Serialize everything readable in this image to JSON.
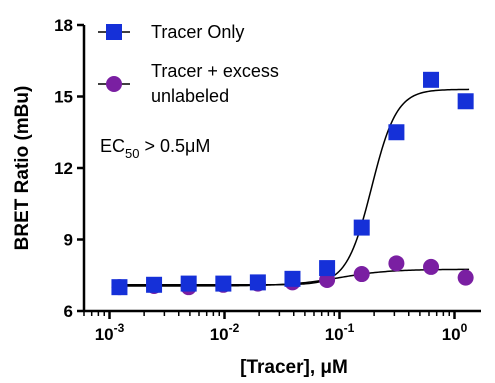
{
  "chart_data": {
    "type": "scatter",
    "xscale": "log",
    "xlabel": "[Tracer], μM",
    "ylabel": "BRET Ratio (mBu)",
    "xlim": [
      0.0006,
      1.7
    ],
    "ylim": [
      6,
      18
    ],
    "y_ticks": [
      "6",
      "9",
      "12",
      "15",
      "18"
    ],
    "x_ticks": [
      {
        "value": 0.001,
        "base": "10",
        "exp": "-3"
      },
      {
        "value": 0.01,
        "base": "10",
        "exp": "-2"
      },
      {
        "value": 0.1,
        "base": "10",
        "exp": "-1"
      },
      {
        "value": 1,
        "base": "10",
        "exp": "0"
      }
    ],
    "annotation": {
      "prefix": "EC",
      "sub": "50",
      "suffix": " > 0.5μM"
    },
    "legend_position": "top-left",
    "series": [
      {
        "name": "Tracer Only",
        "marker": "square",
        "color": "#1530d8",
        "points": [
          {
            "x": 0.00122,
            "y": 7.0
          },
          {
            "x": 0.00244,
            "y": 7.1
          },
          {
            "x": 0.00488,
            "y": 7.15
          },
          {
            "x": 0.00977,
            "y": 7.15
          },
          {
            "x": 0.0195,
            "y": 7.2
          },
          {
            "x": 0.039,
            "y": 7.35
          },
          {
            "x": 0.078,
            "y": 7.8
          },
          {
            "x": 0.156,
            "y": 9.5
          },
          {
            "x": 0.3125,
            "y": 13.5
          },
          {
            "x": 0.625,
            "y": 15.7
          },
          {
            "x": 1.25,
            "y": 14.8
          }
        ],
        "fit": {
          "bottom": 7.1,
          "top": 15.3,
          "log_ec50": -0.72,
          "hill": 4
        }
      },
      {
        "name": "Tracer + excess unlabeled",
        "legend_lines": [
          "Tracer + excess",
          "unlabeled"
        ],
        "marker": "circle",
        "color": "#7a1fa2",
        "points": [
          {
            "x": 0.00122,
            "y": 7.0
          },
          {
            "x": 0.00244,
            "y": 7.05
          },
          {
            "x": 0.00488,
            "y": 7.0
          },
          {
            "x": 0.00977,
            "y": 7.1
          },
          {
            "x": 0.0195,
            "y": 7.15
          },
          {
            "x": 0.039,
            "y": 7.2
          },
          {
            "x": 0.078,
            "y": 7.3
          },
          {
            "x": 0.156,
            "y": 7.55
          },
          {
            "x": 0.3125,
            "y": 8.0
          },
          {
            "x": 0.625,
            "y": 7.85
          },
          {
            "x": 1.25,
            "y": 7.4
          }
        ],
        "fit": {
          "bottom": 7.05,
          "top": 7.75,
          "log_ec50": -1.0,
          "hill": 2
        }
      }
    ]
  }
}
